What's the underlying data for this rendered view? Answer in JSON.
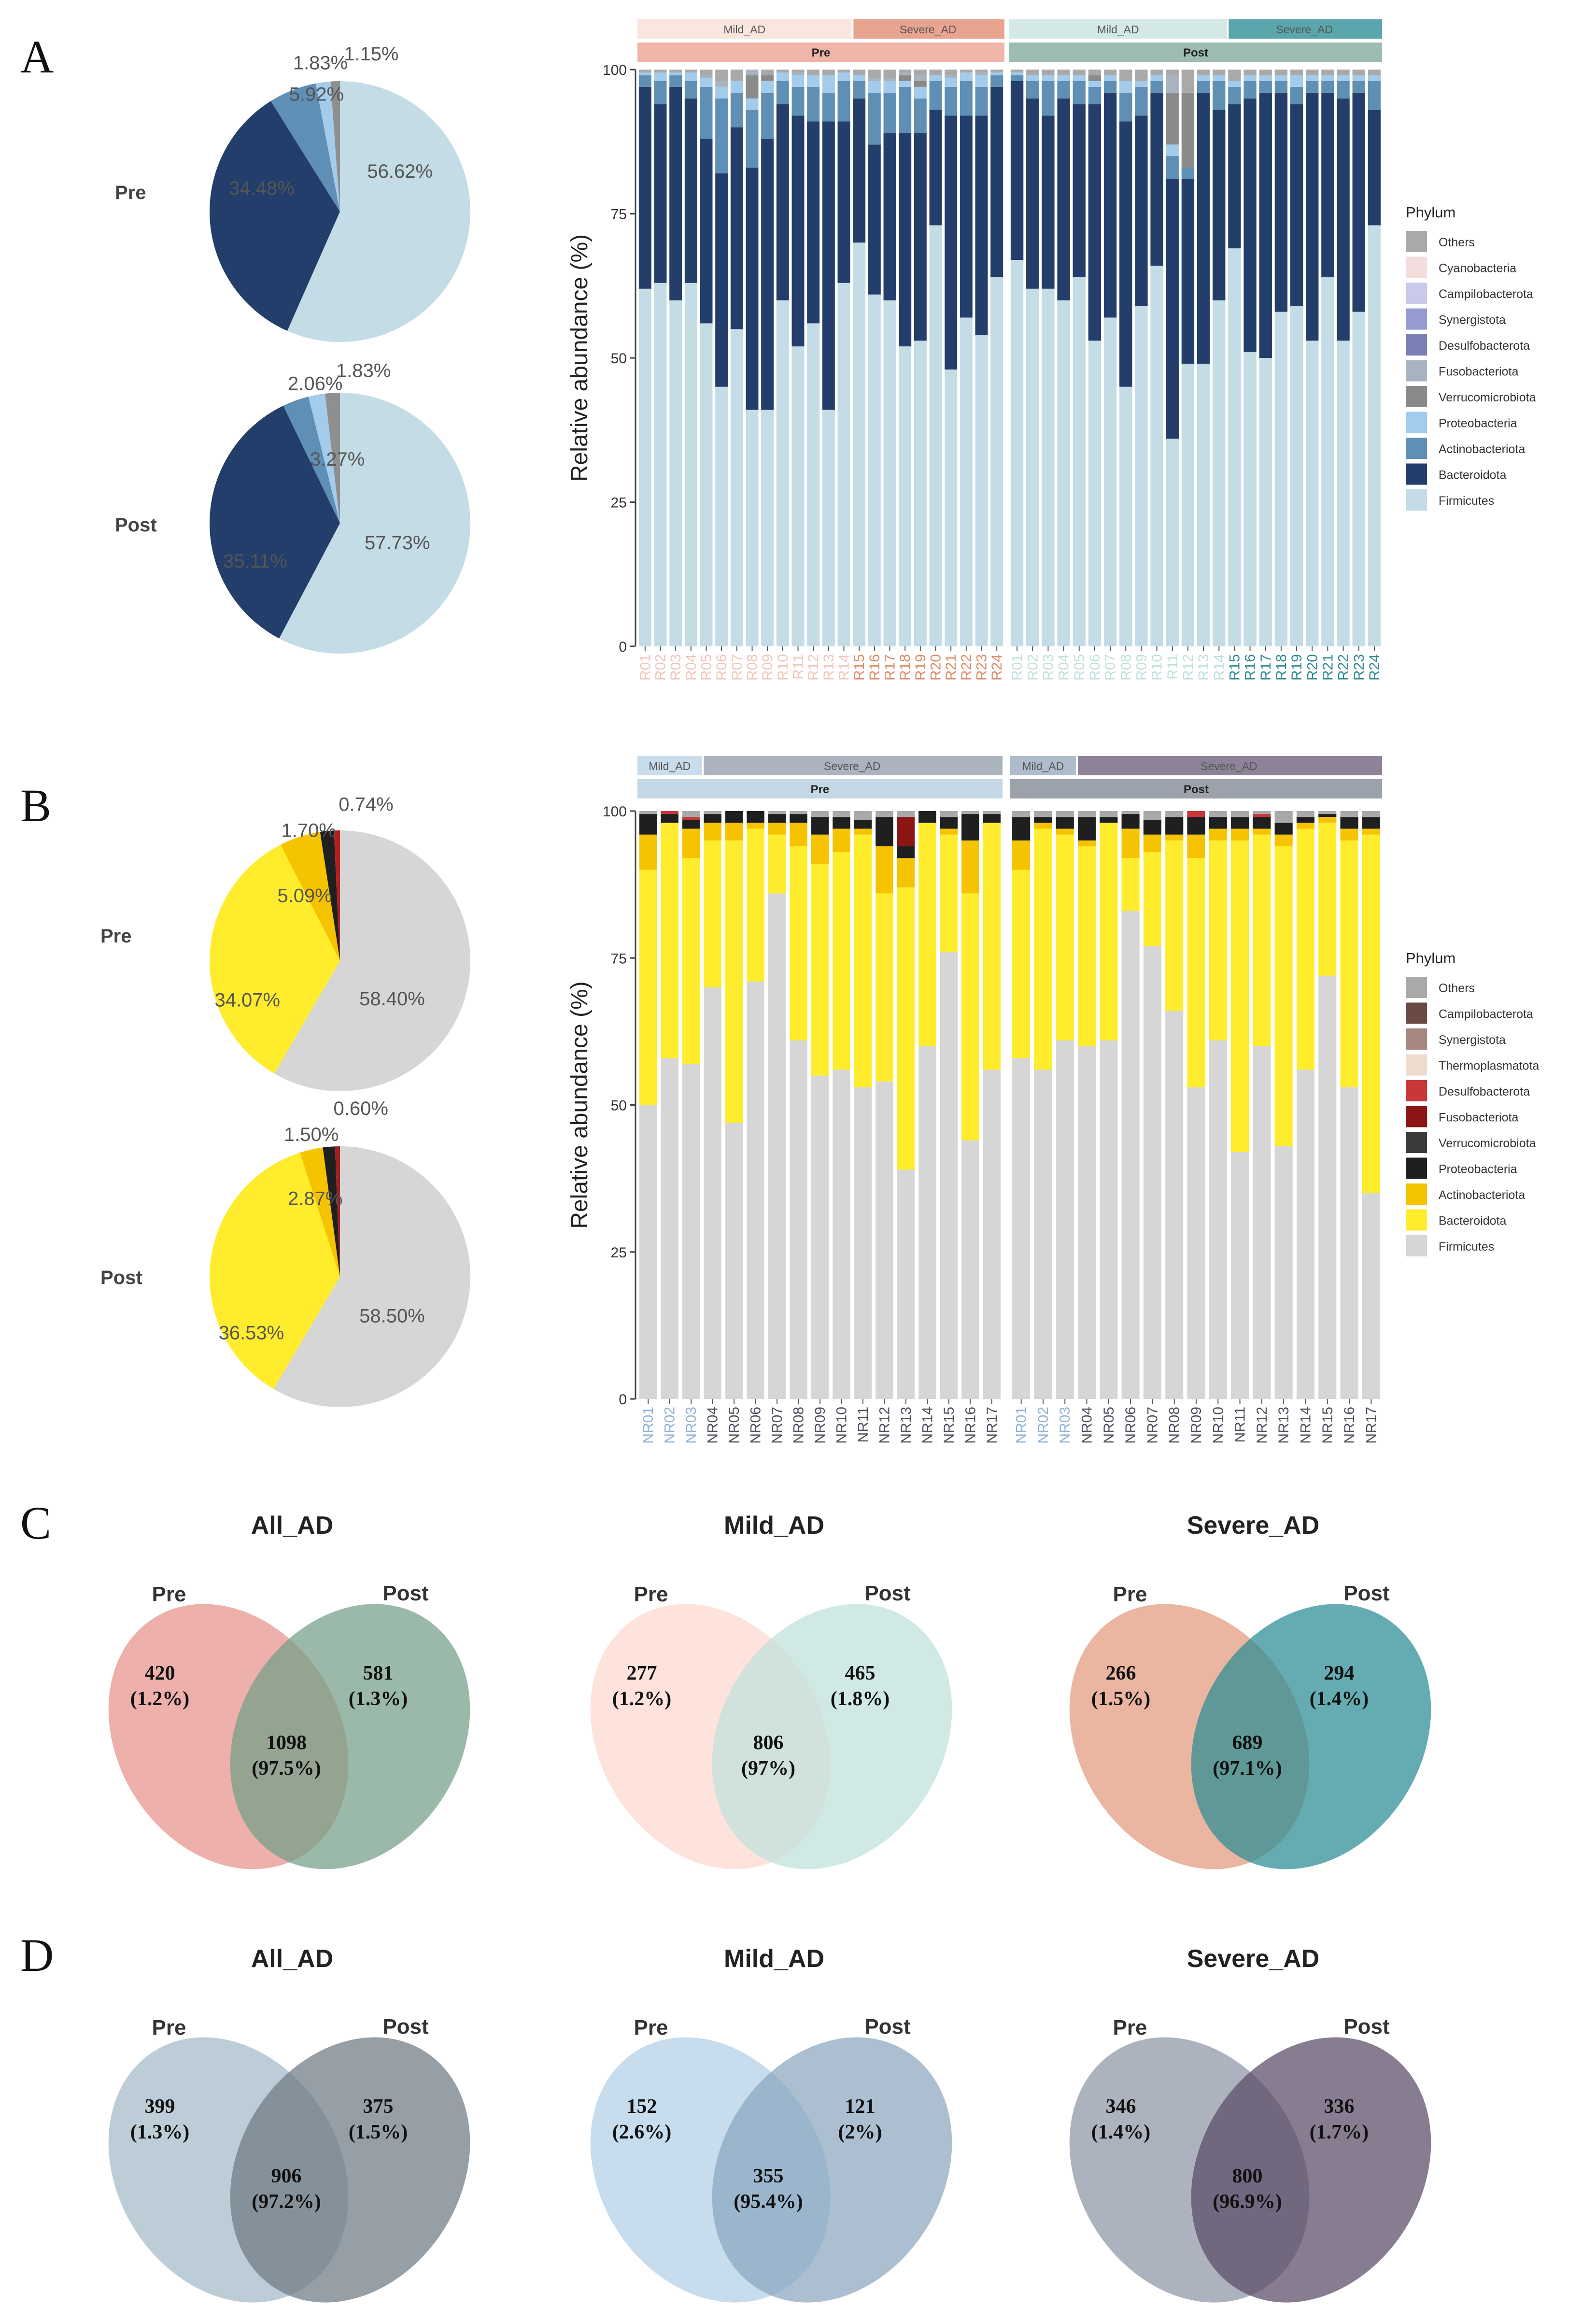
{
  "panel_labels": {
    "A": "A",
    "B": "B",
    "C": "C",
    "D": "D"
  },
  "common": {
    "ylabel": "Relative abundance (%)",
    "legend_title": "Phylum",
    "yticks": [
      "0",
      "25",
      "50",
      "75",
      "100"
    ],
    "pre": "Pre",
    "post": "Post",
    "mild": "Mild_AD",
    "severe": "Severe_AD",
    "all": "All_AD"
  },
  "colors": {
    "A": {
      "Firmicutes": "#c3dce5",
      "Bacteroidota": "#233e6a",
      "Actinobacteriota": "#5f8fb4",
      "Proteobacteria": "#a3cbeb",
      "Verrucomicrobiota": "#8a8a8a",
      "Fusobacteriota": "#a7b4bf",
      "Desulfobacterota": "#7a7fb3",
      "Synergistota": "#959bd0",
      "Campilobacterota": "#c9c9ec",
      "Cyanobacteria": "#f4dedc",
      "Others": "#a9a9a9"
    },
    "B": {
      "Firmicutes": "#d6d6d6",
      "Bacteroidota": "#ffec2c",
      "Actinobacteriota": "#f6c300",
      "Proteobacteria": "#1f1f1f",
      "Verrucomicrobiota": "#3a3a3a",
      "Fusobacteriota": "#8b1414",
      "Desulfobacterota": "#c8373a",
      "Thermoplasmatota": "#eddccd",
      "Synergistota": "#a58780",
      "Campilobacterota": "#6b4a45",
      "Others": "#a9a9a9"
    },
    "groupbars": {
      "A": {
        "mild_pre": "#fbe5df",
        "severe_pre": "#e9a490",
        "pre": "#eeb5a8",
        "mild_post": "#d4e8e6",
        "severe_post": "#5aa6ad",
        "post": "#9cbdb0"
      },
      "B": {
        "mild_pre": "#c9dcec",
        "severe_pre": "#aab3be",
        "pre": "#c4d7e4",
        "mild_post": "#aebbcb",
        "severe_post": "#8d8297",
        "post": "#9ba2ab"
      }
    },
    "ticklabels": {
      "A": {
        "mild_pre": "#f2c4ba",
        "severe_pre": "#e08a65",
        "mild_post": "#bfe0dc",
        "severe_post": "#2f8b8f"
      },
      "B": {
        "mild": "#8db2d6",
        "severe": "#4c4f5c"
      }
    },
    "venn": {
      "C_all": [
        "#e8928a",
        "#739e86"
      ],
      "C_mild": [
        "#fcd8cf",
        "#bfe1db"
      ],
      "C_severe": [
        "#e39a7d",
        "#2a8c94"
      ],
      "D_all": [
        "#a4bac8",
        "#6e7a84"
      ],
      "D_mild": [
        "#b1d0e6",
        "#8ba6bf"
      ],
      "D_severe": [
        "#8e96a5",
        "#5a4a67"
      ]
    }
  },
  "chart_data": [
    {
      "id": "A_pie",
      "type": "pie",
      "title_pre": "Pre",
      "title_post": "Post",
      "categories": [
        "Firmicutes",
        "Bacteroidota",
        "Actinobacteriota",
        "Proteobacteria",
        "Others"
      ],
      "pre_values": [
        56.62,
        34.48,
        5.92,
        1.83,
        1.15
      ],
      "post_values": [
        57.73,
        35.11,
        3.27,
        2.06,
        1.83
      ],
      "pre_labels": [
        "56.62%",
        "34.48%",
        "5.92%",
        "1.83%",
        "1.15%"
      ],
      "post_labels": [
        "57.73%",
        "35.11%",
        "3.27%",
        "2.06%",
        "1.83%"
      ]
    },
    {
      "id": "A_bar",
      "type": "bar",
      "stacked": true,
      "ylim": [
        0,
        100
      ],
      "ylabel": "Relative abundance (%)",
      "legend_title": "Phylum",
      "legend": [
        "Others",
        "Cyanobacteria",
        "Campilobacterota",
        "Synergistota",
        "Desulfobacterota",
        "Fusobacteriota",
        "Verrucomicrobiota",
        "Proteobacteria",
        "Actinobacteriota",
        "Bacteroidota",
        "Firmicutes"
      ],
      "stack_order": [
        "Firmicutes",
        "Bacteroidota",
        "Actinobacteriota",
        "Proteobacteria",
        "Verrucomicrobiota",
        "Fusobacteriota",
        "Others"
      ],
      "samples": [
        "R01",
        "R02",
        "R03",
        "R04",
        "R05",
        "R06",
        "R07",
        "R08",
        "R09",
        "R10",
        "R11",
        "R12",
        "R13",
        "R14",
        "R15",
        "R16",
        "R17",
        "R18",
        "R19",
        "R20",
        "R21",
        "R22",
        "R23",
        "R24"
      ],
      "mild_count": 14,
      "pre": {
        "Firmicutes": [
          62,
          63,
          60,
          63,
          56,
          45,
          55,
          41,
          41,
          60,
          52,
          56,
          41,
          63,
          70,
          61,
          60,
          52,
          53,
          73,
          48,
          57,
          54,
          64
        ],
        "Bacteroidota": [
          35,
          31,
          37,
          32,
          32,
          37,
          35,
          42,
          47,
          34,
          40,
          35,
          50,
          28,
          25,
          26,
          29,
          37,
          36,
          20,
          44,
          35,
          38,
          33
        ],
        "Actinobacteriota": [
          2,
          4,
          2,
          3,
          9,
          13,
          6,
          10,
          8,
          4,
          5,
          6,
          5,
          7,
          3,
          9,
          7,
          8,
          6,
          5,
          5,
          6,
          5,
          2
        ],
        "Proteobacteria": [
          0.5,
          1.5,
          0.5,
          1.5,
          1.5,
          2,
          2,
          2,
          2,
          1.5,
          2,
          2,
          3,
          1.5,
          1,
          2,
          2,
          1,
          2,
          1,
          1.5,
          1.5,
          2,
          0.5
        ],
        "Verrucomicrobiota": [
          0,
          0,
          0,
          0,
          0,
          0,
          0,
          4,
          1,
          0,
          0,
          0,
          0,
          0,
          0,
          0,
          0,
          1,
          1,
          0,
          0,
          0,
          0,
          0
        ],
        "Fusobacteriota": [
          0,
          0,
          0,
          0,
          0.5,
          1,
          0,
          1,
          0,
          0,
          0.5,
          0,
          0,
          0,
          0,
          0.5,
          0.5,
          0.5,
          1,
          0,
          0.5,
          0,
          0.5,
          0
        ],
        "Others": [
          0.5,
          0.5,
          0.5,
          0.5,
          1,
          2,
          2,
          0,
          1,
          0.5,
          0.5,
          1,
          1,
          0.5,
          1,
          1.5,
          1.5,
          0.5,
          1,
          1,
          1,
          0.5,
          0.5,
          0.5
        ]
      },
      "post": {
        "Firmicutes": [
          67,
          62,
          62,
          60,
          64,
          53,
          57,
          45,
          59,
          66,
          36,
          49,
          49,
          60,
          69,
          51,
          50,
          58,
          59,
          53,
          64,
          53,
          58,
          73
        ],
        "Bacteroidota": [
          31,
          33,
          30,
          35,
          30,
          41,
          39,
          46,
          33,
          30,
          45,
          32,
          47,
          33,
          25,
          44,
          46,
          38,
          35,
          43,
          32,
          42,
          38,
          20
        ],
        "Actinobacteriota": [
          1,
          3,
          6,
          3,
          4,
          3,
          2,
          5,
          5,
          2,
          4,
          2,
          2,
          5,
          3,
          3,
          2,
          2,
          3,
          2,
          2,
          3,
          2,
          5
        ],
        "Proteobacteria": [
          0.5,
          1,
          1,
          1,
          1,
          1,
          1,
          2,
          1,
          1,
          2,
          0,
          1,
          1,
          1,
          1,
          1,
          1,
          2,
          1,
          1,
          1,
          1,
          1
        ],
        "Verrucomicrobiota": [
          0,
          0,
          0,
          0,
          0,
          1,
          0,
          0,
          0,
          0,
          9,
          13,
          0,
          0,
          0,
          0,
          0,
          0,
          0,
          0,
          0,
          0,
          0,
          0
        ],
        "Fusobacteriota": [
          0,
          0,
          0,
          0,
          0,
          0,
          0,
          0,
          0,
          0,
          3,
          0,
          0,
          0,
          0,
          0,
          0,
          0,
          0,
          0,
          0,
          0,
          0,
          0
        ],
        "Others": [
          0.5,
          1,
          1,
          1,
          1,
          1,
          1,
          2,
          2,
          1,
          1,
          4,
          1,
          1,
          2,
          1,
          1,
          1,
          1,
          1,
          1,
          1,
          1,
          1
        ]
      }
    },
    {
      "id": "B_pie",
      "type": "pie",
      "title_pre": "Pre",
      "title_post": "Post",
      "categories": [
        "Firmicutes",
        "Bacteroidota",
        "Actinobacteriota",
        "Proteobacteria",
        "Others"
      ],
      "pre_values": [
        58.4,
        34.07,
        5.09,
        1.7,
        0.74
      ],
      "post_values": [
        58.5,
        36.53,
        2.87,
        1.5,
        0.6
      ],
      "pre_labels": [
        "58.40%",
        "34.07%",
        "5.09%",
        "1.70%",
        "0.74%"
      ],
      "post_labels": [
        "58.50%",
        "36.53%",
        "2.87%",
        "1.50%",
        "0.60%"
      ]
    },
    {
      "id": "B_bar",
      "type": "bar",
      "stacked": true,
      "ylim": [
        0,
        100
      ],
      "ylabel": "Relative abundance (%)",
      "legend_title": "Phylum",
      "legend": [
        "Others",
        "Campilobacterota",
        "Synergistota",
        "Thermoplasmatota",
        "Desulfobacterota",
        "Fusobacteriota",
        "Verrucomicrobiota",
        "Proteobacteria",
        "Actinobacteriota",
        "Bacteroidota",
        "Firmicutes"
      ],
      "stack_order": [
        "Firmicutes",
        "Bacteroidota",
        "Actinobacteriota",
        "Proteobacteria",
        "Fusobacteriota",
        "Desulfobacterota",
        "Others"
      ],
      "samples": [
        "NR01",
        "NR02",
        "NR03",
        "NR04",
        "NR05",
        "NR06",
        "NR07",
        "NR08",
        "NR09",
        "NR10",
        "NR11",
        "NR12",
        "NR13",
        "NR14",
        "NR15",
        "NR16",
        "NR17"
      ],
      "mild_count": 3,
      "pre": {
        "Firmicutes": [
          50,
          58,
          57,
          70,
          47,
          71,
          86,
          61,
          55,
          56,
          53,
          54,
          39,
          60,
          76,
          44,
          56
        ],
        "Bacteroidota": [
          40,
          40,
          35,
          25,
          48,
          26,
          10,
          33,
          36,
          37,
          43,
          32,
          48,
          38,
          20,
          42,
          42
        ],
        "Actinobacteriota": [
          6,
          0,
          5,
          3,
          3,
          1,
          2,
          4,
          5,
          4,
          1,
          8,
          5,
          0,
          1,
          9,
          0
        ],
        "Proteobacteria": [
          3.5,
          1.5,
          1.5,
          1.5,
          2,
          2,
          1.5,
          1.5,
          3,
          2,
          1.5,
          5,
          2,
          2,
          2,
          4.5,
          1.5
        ],
        "Fusobacteriota": [
          0,
          0,
          0,
          0,
          0,
          0,
          0,
          0,
          0,
          0,
          0,
          0,
          5,
          0,
          0,
          0,
          0
        ],
        "Desulfobacterota": [
          0,
          0.5,
          0.5,
          0,
          0,
          0,
          0,
          0,
          0,
          0,
          0,
          0,
          0,
          0,
          0,
          0,
          0
        ],
        "Others": [
          0.5,
          0,
          1,
          0.5,
          0,
          0,
          0.5,
          0.5,
          1,
          1,
          1.5,
          1,
          1,
          0,
          1,
          0.5,
          0.5
        ]
      },
      "post": {
        "Firmicutes": [
          58,
          56,
          61,
          60,
          61,
          83,
          77,
          66,
          53,
          61,
          42,
          60,
          43,
          56,
          72,
          53,
          35
        ],
        "Bacteroidota": [
          32,
          41,
          35,
          34,
          37,
          9,
          16,
          29,
          39,
          34,
          53,
          36,
          51,
          41,
          26,
          42,
          61
        ],
        "Actinobacteriota": [
          5,
          1,
          1,
          1,
          0,
          5,
          3,
          1,
          4,
          2,
          2,
          1,
          2,
          1,
          1,
          2,
          1
        ],
        "Proteobacteria": [
          4,
          1,
          2,
          4,
          1,
          2.5,
          2.5,
          3,
          3,
          2,
          2,
          2,
          2,
          1,
          0.5,
          2,
          2
        ],
        "Fusobacteriota": [
          0,
          0,
          0,
          0,
          0,
          0,
          0,
          0,
          0,
          0,
          0,
          0,
          0,
          0,
          0,
          0,
          0
        ],
        "Desulfobacterota": [
          0,
          0,
          0,
          0,
          0,
          0,
          0,
          0,
          1,
          0,
          0,
          0.5,
          0,
          0,
          0,
          0,
          0
        ],
        "Others": [
          1,
          1,
          1,
          1,
          1,
          0.5,
          1.5,
          1,
          0,
          1,
          1,
          0.5,
          2,
          1,
          0.5,
          1,
          1
        ]
      }
    },
    {
      "id": "C_venn",
      "type": "venn",
      "sets": [
        {
          "title": "All_AD",
          "pre_only": "420",
          "pre_only_pct": "(1.2%)",
          "shared": "1098",
          "shared_pct": "(97.5%)",
          "post_only": "581",
          "post_only_pct": "(1.3%)"
        },
        {
          "title": "Mild_AD",
          "pre_only": "277",
          "pre_only_pct": "(1.2%)",
          "shared": "806",
          "shared_pct": "(97%)",
          "post_only": "465",
          "post_only_pct": "(1.8%)"
        },
        {
          "title": "Severe_AD",
          "pre_only": "266",
          "pre_only_pct": "(1.5%)",
          "shared": "689",
          "shared_pct": "(97.1%)",
          "post_only": "294",
          "post_only_pct": "(1.4%)"
        }
      ]
    },
    {
      "id": "D_venn",
      "type": "venn",
      "sets": [
        {
          "title": "All_AD",
          "pre_only": "399",
          "pre_only_pct": "(1.3%)",
          "shared": "906",
          "shared_pct": "(97.2%)",
          "post_only": "375",
          "post_only_pct": "(1.5%)"
        },
        {
          "title": "Mild_AD",
          "pre_only": "152",
          "pre_only_pct": "(2.6%)",
          "shared": "355",
          "shared_pct": "(95.4%)",
          "post_only": "121",
          "post_only_pct": "(2%)"
        },
        {
          "title": "Severe_AD",
          "pre_only": "346",
          "pre_only_pct": "(1.4%)",
          "shared": "800",
          "shared_pct": "(96.9%)",
          "post_only": "336",
          "post_only_pct": "(1.7%)"
        }
      ]
    }
  ]
}
